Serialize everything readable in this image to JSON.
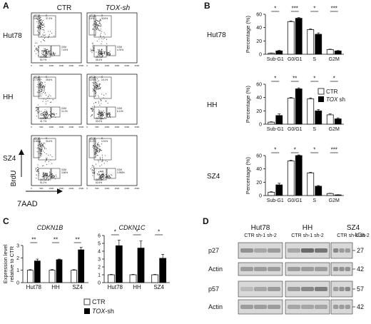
{
  "panels": {
    "A": {
      "letter": "A",
      "col_ctr": "CTR",
      "col_sh": "TOX-sh",
      "rows": [
        "Hut78",
        "HH",
        "SZ4"
      ],
      "ylabel": "BrdU",
      "xlabel": "7AAD",
      "gate_labels": {
        "r0c0": [
          "APOP",
          "3.86%",
          "S",
          "37.4%",
          "G2M",
          "7.43%",
          "G0-G1",
          "50.7%"
        ],
        "r0c1": [
          "APOP",
          "5.4%",
          "S",
          "30.5%",
          "G2M",
          "4.76%",
          "G0-G1",
          "55.4%"
        ],
        "r1c0": [
          "APOP",
          "2.71%",
          "S",
          "39.6%",
          "G2M",
          "11.2%",
          "G0-G1",
          "41.7%"
        ],
        "r1c1": [
          "APOP",
          "10.9%",
          "S",
          "19.1%",
          "G2M",
          "6.11%",
          "G0-G1",
          "53.0%"
        ],
        "r2c0": [
          "APOP",
          "4.36%",
          "S",
          "33.4%",
          "G2M",
          "3.56%",
          "G0-G1",
          "51.2%"
        ],
        "r2c1": [
          "APOP",
          "21.3%",
          "S",
          "12.6%",
          "G2M",
          "0.998%",
          "G0-G1",
          "62.6%"
        ]
      },
      "x_ticks": [
        "0",
        "50K",
        "100K",
        "150K",
        "200K",
        "250K"
      ]
    },
    "B": {
      "letter": "B"
    },
    "C": {
      "letter": "C"
    },
    "D": {
      "letter": "D",
      "cell_lines": [
        "Hut78",
        "HH",
        "SZ4"
      ],
      "lanes": "CTR sh-1 sh-2",
      "unit": "kDa",
      "rows": [
        {
          "name": "p27",
          "kda": "27"
        },
        {
          "name": "Actin",
          "kda": "42"
        },
        {
          "name": "p57",
          "kda": "57"
        },
        {
          "name": "Actin",
          "kda": "42"
        }
      ]
    }
  },
  "chart_data": [
    {
      "type": "bar",
      "panel": "B",
      "cell_line": "Hut78",
      "categories": [
        "Sub-G1",
        "G0/G1",
        "S",
        "G2M"
      ],
      "ylabel": "Percentage (%)",
      "ylim": [
        0,
        60
      ],
      "yticks": [
        0,
        20,
        40,
        60
      ],
      "series": [
        {
          "name": "CTR",
          "values": [
            1.5,
            49,
            37,
            7
          ],
          "err": [
            0.4,
            1.0,
            1.0,
            0.6
          ]
        },
        {
          "name": "TOX sh",
          "values": [
            5,
            54,
            30,
            5
          ],
          "err": [
            0.8,
            1.0,
            2.0,
            0.6
          ]
        }
      ],
      "significance": [
        "*",
        "***",
        "*",
        "***"
      ]
    },
    {
      "type": "bar",
      "panel": "B",
      "cell_line": "HH",
      "categories": [
        "Sub-G1",
        "G0/G1",
        "S",
        "G2M"
      ],
      "ylabel": "Percentage (%)",
      "ylim": [
        0,
        60
      ],
      "yticks": [
        0,
        20,
        40,
        60
      ],
      "series": [
        {
          "name": "CTR",
          "values": [
            3,
            39,
            38,
            14
          ],
          "err": [
            0.6,
            1.0,
            1.5,
            1.5
          ]
        },
        {
          "name": "TOX sh",
          "values": [
            13,
            53,
            20,
            8
          ],
          "err": [
            2.5,
            1.5,
            2.0,
            1.5
          ]
        }
      ],
      "significance": [
        "*",
        "**",
        "*",
        "*"
      ]
    },
    {
      "type": "bar",
      "panel": "B",
      "cell_line": "SZ4",
      "categories": [
        "Sub-G1",
        "G0/G1",
        "S",
        "G2M"
      ],
      "ylabel": "Percentage (%)",
      "ylim": [
        0,
        60
      ],
      "yticks": [
        0,
        20,
        40,
        60
      ],
      "series": [
        {
          "name": "CTR",
          "values": [
            5,
            52,
            34,
            3
          ],
          "err": [
            0.8,
            1.0,
            1.0,
            0.4
          ]
        },
        {
          "name": "TOX sh",
          "values": [
            16,
            60,
            14,
            1
          ],
          "err": [
            2.5,
            1.0,
            1.0,
            0.3
          ]
        }
      ],
      "significance": [
        "*",
        "*",
        "*",
        "***"
      ]
    },
    {
      "type": "bar",
      "panel": "C",
      "gene": "CDKN1B",
      "categories": [
        "Hut78",
        "HH",
        "SZ4"
      ],
      "ylabel": "Expression level relative to CTR",
      "ylim": [
        0,
        3
      ],
      "yticks": [
        0,
        1,
        2,
        3
      ],
      "series": [
        {
          "name": "CTR",
          "values": [
            1,
            1,
            1
          ],
          "err": [
            0.05,
            0.05,
            0.05
          ]
        },
        {
          "name": "TOX-sh",
          "values": [
            1.75,
            1.85,
            2.65
          ],
          "err": [
            0.15,
            0.05,
            0.2
          ]
        }
      ],
      "significance": [
        "**",
        "**",
        "**"
      ]
    },
    {
      "type": "bar",
      "panel": "C",
      "gene": "CDKN1C",
      "categories": [
        "Hut78",
        "HH",
        "SZ4"
      ],
      "ylabel": "",
      "ylim": [
        0,
        6
      ],
      "yticks": [
        0,
        1,
        2,
        3,
        4,
        5,
        6
      ],
      "series": [
        {
          "name": "CTR",
          "values": [
            1,
            1,
            1
          ],
          "err": [
            0.05,
            0.05,
            0.05
          ]
        },
        {
          "name": "TOX-sh",
          "values": [
            4.7,
            4.4,
            3.1
          ],
          "err": [
            0.7,
            0.9,
            0.5
          ]
        }
      ],
      "significance": [
        "*",
        "*",
        "*"
      ]
    }
  ],
  "legends": {
    "B": [
      "CTR",
      "TOX sh"
    ],
    "C": [
      "CTR",
      "TOX-sh"
    ]
  },
  "colors": {
    "ctr_fill": "#ffffff",
    "sh_fill": "#000000",
    "ink": "#111111"
  }
}
